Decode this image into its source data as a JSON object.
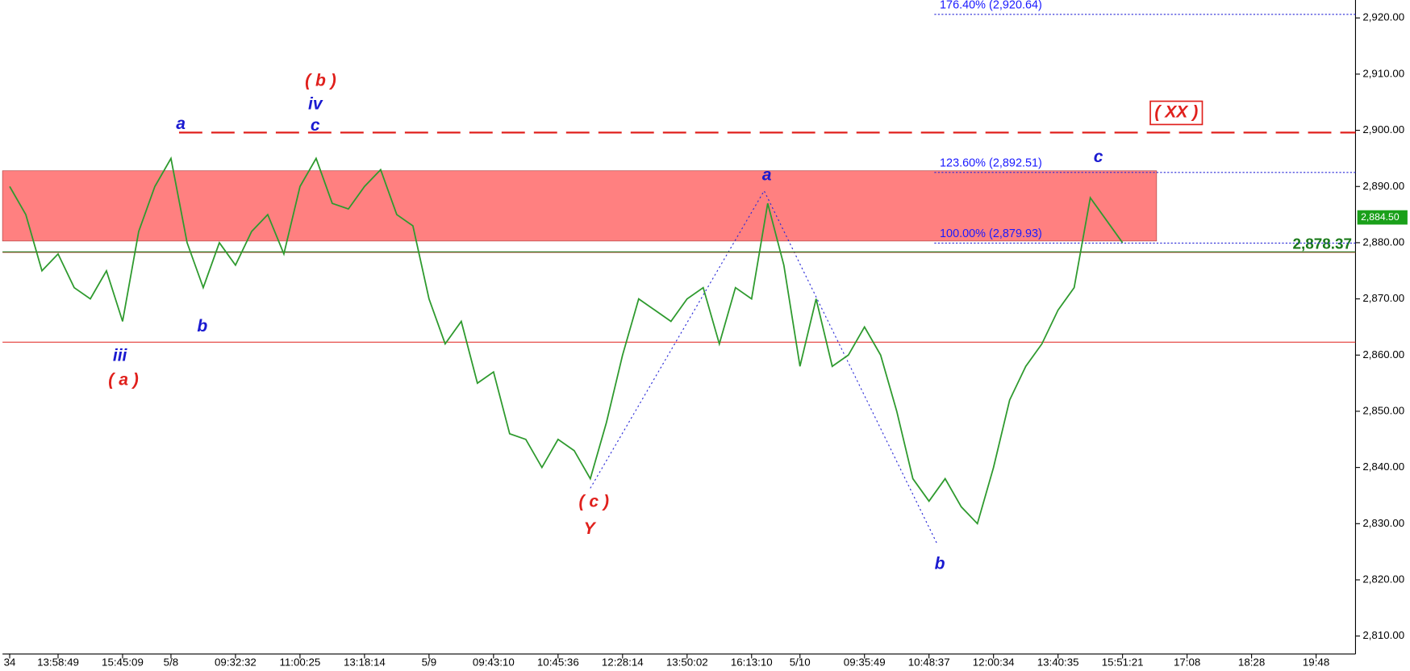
{
  "chart_data": {
    "type": "line",
    "categories": [
      "34",
      null,
      null,
      "13:58:49",
      null,
      null,
      null,
      "15:45:09",
      null,
      null,
      "5/8",
      null,
      null,
      null,
      "09:32:32",
      null,
      null,
      null,
      "11:00:25",
      null,
      null,
      null,
      "13:18:14",
      null,
      null,
      null,
      "5/9",
      null,
      null,
      null,
      "09:43:10",
      null,
      null,
      null,
      "10:45:36",
      null,
      null,
      null,
      "12:28:14",
      null,
      null,
      null,
      "13:50:02",
      null,
      null,
      null,
      "16:13:10",
      null,
      null,
      "5/10",
      null,
      null,
      null,
      "09:35:49",
      null,
      null,
      null,
      "10:48:37",
      null,
      null,
      null,
      "12:00:34",
      null,
      null,
      null,
      "13:40:35",
      null,
      null,
      null,
      "15:51:21",
      null,
      null,
      null,
      "17:08",
      null,
      null,
      null,
      "18:28",
      null,
      null,
      null,
      "19:48",
      null
    ],
    "series": [
      {
        "color": "#2e9a2e",
        "values": [
          2890,
          2885,
          2875,
          2878,
          2872,
          2870,
          2875,
          2866,
          2882,
          2890,
          2895,
          2880,
          2872,
          2880,
          2876,
          2882,
          2885,
          2878,
          2890,
          2895,
          2887,
          2886,
          2890,
          2893,
          2885,
          2883,
          2870,
          2862,
          2866,
          2855,
          2857,
          2846,
          2845,
          2840,
          2845,
          2843,
          2838,
          2848,
          2860,
          2870,
          2868,
          2866,
          2870,
          2872,
          2862,
          2872,
          2870,
          2887,
          2876,
          2858,
          2870,
          2858,
          2860,
          2865,
          2860,
          2850,
          2838,
          2834,
          2838,
          2833,
          2830,
          2840,
          2852,
          2858,
          2862,
          2868,
          2872,
          2888,
          2884,
          2880,
          null,
          null,
          null,
          null,
          null,
          null,
          null,
          null,
          null,
          null,
          null,
          null,
          null
        ]
      }
    ],
    "ylim": [
      2803.78,
      2923.19
    ],
    "yticks": [
      {
        "value": 2810,
        "label": "2,810.00"
      },
      {
        "value": 2820,
        "label": "2,820.00"
      },
      {
        "value": 2830,
        "label": "2,830.00"
      },
      {
        "value": 2840,
        "label": "2,840.00"
      },
      {
        "value": 2850,
        "label": "2,850.00"
      },
      {
        "value": 2860,
        "label": "2,860.00"
      },
      {
        "value": 2870,
        "label": "2,870.00"
      },
      {
        "value": 2880,
        "label": "2,880.00"
      },
      {
        "value": 2890,
        "label": "2,890.00"
      },
      {
        "value": 2900,
        "label": "2,900.00"
      },
      {
        "value": 2910,
        "label": "2,910.00"
      },
      {
        "value": 2920,
        "label": "2,920.00"
      }
    ],
    "zone": {
      "color": "#ff8080",
      "range": [
        2880.3,
        2892.8
      ]
    },
    "resistance": {
      "color": "#e0201c",
      "value": 2899.6
    },
    "support_lines": {
      "color": "#e0201c",
      "values": [
        2878.3,
        2862.3
      ]
    },
    "fib_levels": [
      {
        "value": 2920.64,
        "label": "176.40% (2,920.64)"
      },
      {
        "value": 2892.51,
        "label": "123.60% (2,892.51)"
      },
      {
        "value": 2879.93,
        "label": "100.00% (2,879.93)"
      }
    ],
    "level_marker": {
      "value": 2878.37,
      "label": "2,878.37",
      "color": "#1a7a1a"
    },
    "last_price": {
      "value": 2884.5,
      "label": "2,884.50",
      "color": "#1aa01a"
    },
    "annotations": [
      {
        "text": "( b )",
        "color": "#e0201c"
      },
      {
        "text": "iv",
        "color": "#1a1ad0"
      },
      {
        "text": "c",
        "color": "#1a1ad0"
      },
      {
        "text": "a",
        "color": "#1a1ad0"
      },
      {
        "text": "b",
        "color": "#1a1ad0"
      },
      {
        "text": "iii",
        "color": "#1a1ad0"
      },
      {
        "text": "( a )",
        "color": "#e0201c"
      },
      {
        "text": "( c )",
        "color": "#e0201c"
      },
      {
        "text": "Y",
        "color": "#e0201c"
      },
      {
        "text": "a",
        "color": "#1a1ad0"
      },
      {
        "text": "b",
        "color": "#1a1ad0"
      },
      {
        "text": "c",
        "color": "#1a1ad0"
      },
      {
        "text": "( XX )",
        "color": "#e0201c"
      }
    ]
  }
}
